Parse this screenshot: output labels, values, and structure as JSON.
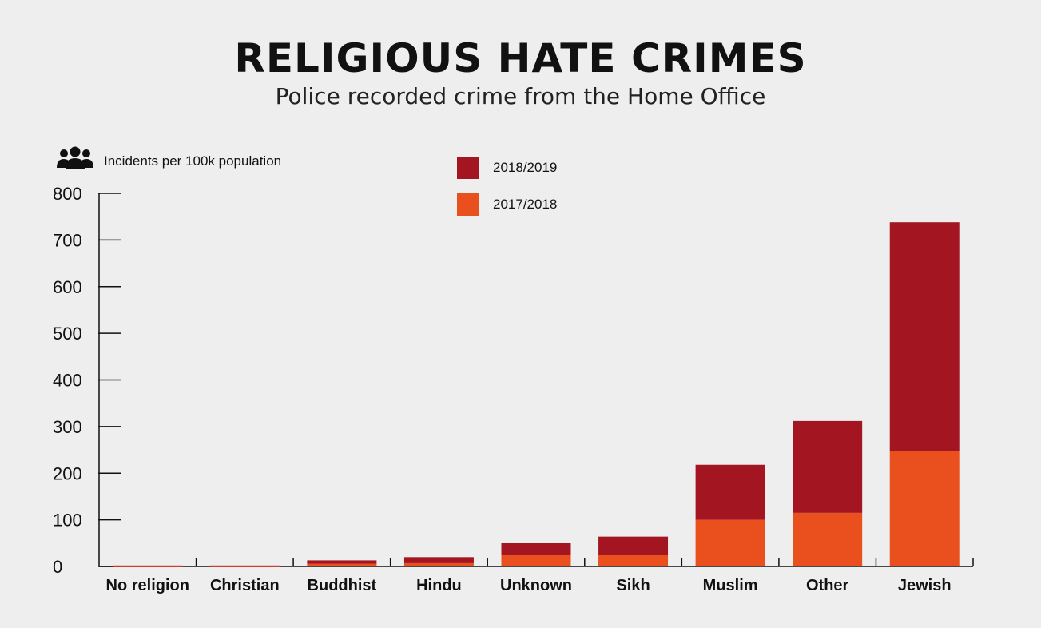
{
  "header": {
    "title": "RELIGIOUS HATE CRIMES",
    "subtitle": "Police recorded crime from the Home Office"
  },
  "unit_label": "Incidents per 100k population",
  "icons": {
    "unit": "people-group-icon"
  },
  "legend": [
    {
      "label": "2018/2019",
      "color": "#a31621"
    },
    {
      "label": "2017/2018",
      "color": "#ea501e"
    }
  ],
  "chart_data": {
    "type": "bar",
    "stacked": true,
    "categories": [
      "No religion",
      "Christian",
      "Buddhist",
      "Hindu",
      "Unknown",
      "Sikh",
      "Muslim",
      "Other",
      "Jewish"
    ],
    "series": [
      {
        "name": "2017/2018",
        "color": "#ea501e",
        "values": [
          1,
          1,
          6,
          7,
          24,
          24,
          100,
          115,
          248
        ]
      },
      {
        "name": "2018/2019",
        "color": "#a31621",
        "values": [
          1,
          1,
          7,
          13,
          26,
          40,
          118,
          197,
          490
        ]
      }
    ],
    "yticks": [
      "0",
      "100",
      "200",
      "300",
      "400",
      "500",
      "600",
      "700",
      "800"
    ],
    "ylim": [
      0,
      800
    ],
    "grid": false,
    "legend_position": "top-center"
  }
}
